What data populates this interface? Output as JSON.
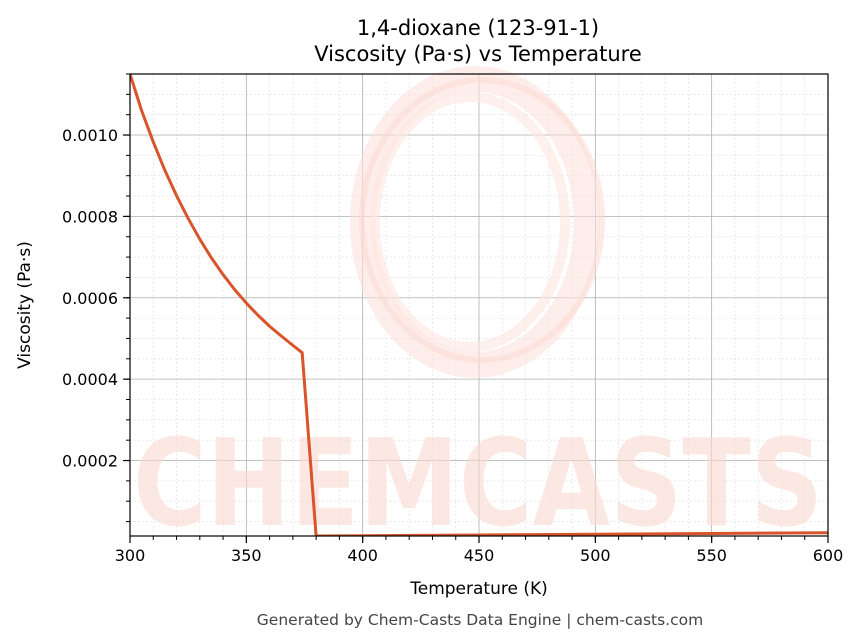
{
  "chart_data": {
    "type": "line",
    "title": "1,4-dioxane (123-91-1)",
    "subtitle": "Viscosity (Pa·s) vs Temperature",
    "xlabel": "Temperature (K)",
    "ylabel": "Viscosity (Pa·s)",
    "xlim": [
      300,
      600
    ],
    "ylim": [
      1.45e-05,
      0.00115
    ],
    "x_ticks": [
      300,
      350,
      400,
      450,
      500,
      550,
      600
    ],
    "x_tick_labels": [
      "300",
      "350",
      "400",
      "450",
      "500",
      "550",
      "600"
    ],
    "y_ticks": [
      0.0002,
      0.0004,
      0.0006,
      0.0008,
      0.001
    ],
    "y_tick_labels": [
      "0.0002",
      "0.0004",
      "0.0006",
      "0.0008",
      "0.0010"
    ],
    "grid": true,
    "series": [
      {
        "color": "#d9542a",
        "x": [
          300,
          305,
          310,
          315,
          320,
          325,
          330,
          335,
          340,
          345,
          350,
          355,
          360,
          365,
          370,
          374,
          380,
          400,
          450,
          500,
          550,
          600
        ],
        "y": [
          0.00115,
          0.00106,
          0.000983,
          0.000913,
          0.000851,
          0.000795,
          0.000744,
          0.000698,
          0.000657,
          0.00062,
          0.000587,
          0.000557,
          0.00053,
          0.000506,
          0.000483,
          0.000465,
          1.45e-05,
          1.52e-05,
          1.7e-05,
          1.88e-05,
          2.07e-05,
          2.26e-05
        ]
      }
    ]
  },
  "watermark": {
    "text": "CHEMCASTS",
    "color": "#fbd9d2"
  },
  "footer": "Generated by Chem-Casts Data Engine | chem-casts.com"
}
